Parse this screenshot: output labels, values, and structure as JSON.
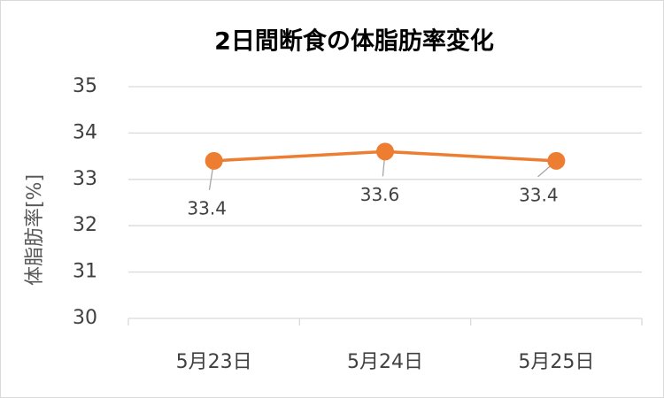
{
  "chart_data": {
    "type": "line",
    "title": "2日間断食の体脂肪率変化",
    "y_label": "体脂肪率[%]",
    "categories": [
      "5月23日",
      "5月24日",
      "5月25日"
    ],
    "values": [
      33.4,
      33.6,
      33.4
    ],
    "color": "#ed7d31",
    "ylim": [
      30,
      35
    ],
    "yticks": [
      30,
      31,
      32,
      33,
      34,
      35
    ],
    "grid": true,
    "data_labels": true
  }
}
